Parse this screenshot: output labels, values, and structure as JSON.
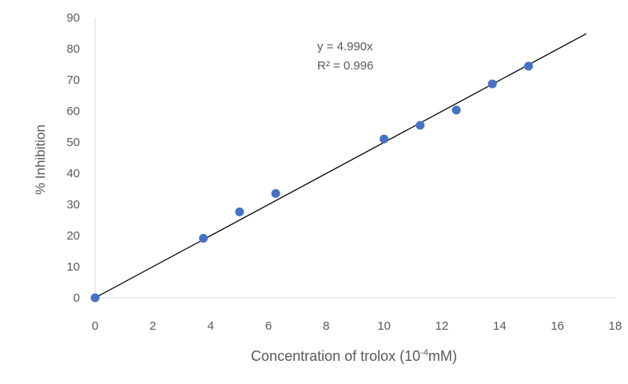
{
  "chart_data": {
    "type": "scatter",
    "xlabel_main": "Concentration of trolox (10",
    "xlabel_sup": "-4",
    "xlabel_tail": "mM)",
    "ylabel": "% Inhibition",
    "xlim": [
      0,
      18
    ],
    "ylim": [
      0,
      90
    ],
    "x_ticks": [
      0,
      2,
      4,
      6,
      8,
      10,
      12,
      14,
      16,
      18
    ],
    "y_ticks": [
      0,
      10,
      20,
      30,
      40,
      50,
      60,
      70,
      80,
      90
    ],
    "grid": false,
    "series": [
      {
        "x": [
          0,
          3.75,
          5,
          6.25,
          10,
          11.25,
          12.5,
          13.75,
          15
        ],
        "y": [
          0,
          19.1,
          27.6,
          33.5,
          51.0,
          55.4,
          60.3,
          68.7,
          74.4
        ],
        "color": "#4472C4"
      }
    ],
    "trendline": {
      "slope": 4.99,
      "x_range": [
        0,
        17
      ],
      "color": "#000000"
    },
    "annotation": {
      "equation": "y = 4.990x",
      "r2": "R² = 0.996"
    }
  }
}
